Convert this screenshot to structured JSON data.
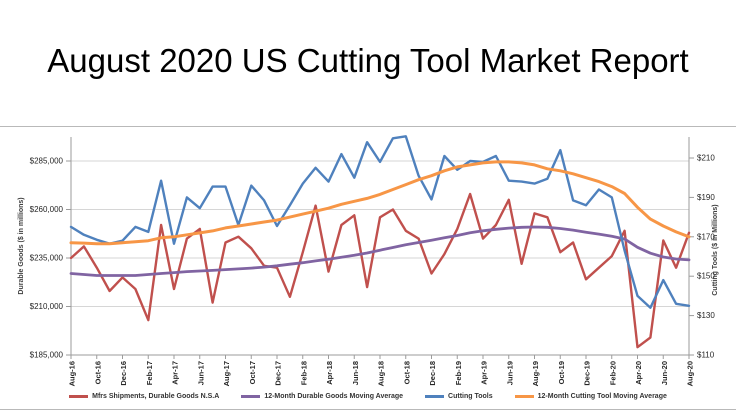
{
  "title": "August 2020 US Cutting Tool Market Report",
  "chart_data": {
    "type": "line",
    "x_interval": "monthly",
    "x_start": "Aug-16",
    "x_end": "Aug-20",
    "x_tick_labels": [
      "Aug-16",
      "Oct-16",
      "Dec-16",
      "Feb-17",
      "Apr-17",
      "Jun-17",
      "Aug-17",
      "Oct-17",
      "Dec-17",
      "Feb-18",
      "Apr-18",
      "Jun-18",
      "Aug-18",
      "Oct-18",
      "Dec-18",
      "Feb-19",
      "Apr-19",
      "Jun-19",
      "Aug-19",
      "Oct-19",
      "Dec-19",
      "Feb-20",
      "Apr-20",
      "Jun-20",
      "Aug-20"
    ],
    "left_axis": {
      "title": "Durable Goods ($ in millions)",
      "tick_labels": [
        "$285,000",
        "$260,000",
        "$235,000",
        "$210,000",
        "$185,000"
      ],
      "tick_values": [
        285000,
        260000,
        235000,
        210000,
        185000
      ],
      "range": [
        185000,
        297000
      ],
      "grid": true
    },
    "right_axis": {
      "title": "Cutting Tools ($ in Millions)",
      "tick_labels": [
        "$210",
        "$190",
        "$170",
        "$150",
        "$130",
        "$110"
      ],
      "tick_values": [
        210,
        190,
        170,
        150,
        130,
        110
      ],
      "range": [
        110,
        215
      ],
      "grid": false
    },
    "legend_position": "bottom",
    "series": [
      {
        "name": "Mfrs Shipments, Durable Goods N.S.A",
        "color": "#C0504D",
        "axis": "left",
        "values": [
          235000,
          241000,
          230000,
          218000,
          225000,
          219000,
          203000,
          252000,
          219000,
          245000,
          250000,
          212000,
          243000,
          246000,
          240000,
          231000,
          230000,
          215000,
          238000,
          262000,
          228000,
          252000,
          257000,
          220000,
          256000,
          260000,
          249000,
          245000,
          227000,
          237000,
          250000,
          268000,
          245000,
          252000,
          265000,
          232000,
          258000,
          256000,
          238000,
          243000,
          224000,
          230000,
          236000,
          249000,
          189000,
          194000,
          244000,
          230000,
          248000
        ]
      },
      {
        "name": "12-Month Durable Goods Moving Average",
        "color": "#8064A2",
        "axis": "left",
        "values": [
          227000,
          226500,
          226000,
          226000,
          226000,
          226000,
          226500,
          227000,
          227500,
          228000,
          228300,
          228600,
          229000,
          229400,
          229800,
          230300,
          231000,
          231800,
          232600,
          233500,
          234400,
          235400,
          236400,
          237600,
          239000,
          240400,
          241800,
          243000,
          244200,
          245400,
          246600,
          248000,
          249000,
          249800,
          250400,
          250800,
          251000,
          250800,
          250200,
          249400,
          248300,
          247300,
          246200,
          244800,
          240500,
          237500,
          235500,
          234500,
          234000
        ]
      },
      {
        "name": "Cutting Tools",
        "color": "#4F81BD",
        "axis": "right",
        "values": [
          175,
          171,
          168.5,
          166.5,
          168,
          175,
          172.5,
          198.5,
          166.5,
          190,
          184.5,
          195.5,
          195.5,
          176,
          196,
          188.5,
          175.5,
          186,
          197,
          205,
          198,
          212,
          200,
          218,
          208,
          220,
          221,
          201,
          189,
          211,
          204,
          208.5,
          208,
          211,
          198.5,
          198,
          197,
          199.5,
          214,
          188.5,
          186,
          194,
          190,
          163,
          140,
          134,
          148,
          136,
          135
        ]
      },
      {
        "name": "12-Month Cutting Tool Moving Average",
        "color": "#F79646",
        "axis": "right",
        "values": [
          167,
          166.8,
          166.5,
          166.5,
          167,
          167.5,
          168,
          169.5,
          170,
          171,
          172,
          173,
          174.5,
          175.5,
          176.5,
          177.5,
          178.5,
          180,
          181.5,
          183,
          184.5,
          186.5,
          188,
          189.5,
          191.5,
          194,
          196.5,
          199,
          201,
          203.5,
          205.5,
          206.5,
          207.5,
          208,
          208,
          207.5,
          206.5,
          204.5,
          203.5,
          202,
          200,
          198,
          195.5,
          192,
          185,
          179,
          175.5,
          172.5,
          170
        ]
      }
    ]
  }
}
